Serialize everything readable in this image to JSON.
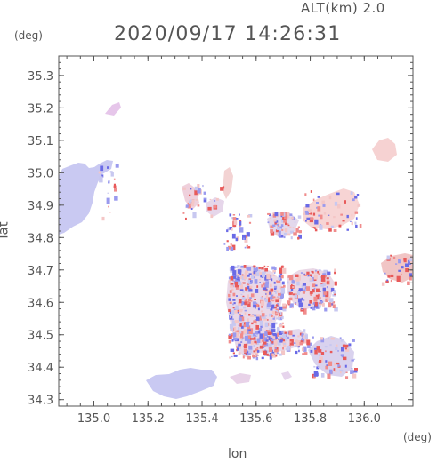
{
  "header": {
    "altitude": "ALT(km)  2.0",
    "datetime": "2020/09/17 14:26:31"
  },
  "axes": {
    "x_unit": "(deg)",
    "y_unit": "(deg)",
    "x_name": "lon",
    "y_name": "lat"
  },
  "chart_data": {
    "type": "heatmap",
    "xlabel": "lon",
    "ylabel": "lat",
    "xlim": [
      134.87,
      136.18
    ],
    "ylim": [
      34.28,
      35.36
    ],
    "x_ticks": [
      135.0,
      135.2,
      135.4,
      135.6,
      135.8,
      136.0
    ],
    "y_ticks": [
      34.3,
      34.4,
      34.5,
      34.6,
      34.7,
      34.8,
      34.9,
      35.0,
      35.1,
      35.2,
      35.3
    ],
    "x_tick_labels": [
      "135.0",
      "135.2",
      "135.4",
      "135.6",
      "135.8",
      "136.0"
    ],
    "y_tick_labels": [
      "34.3",
      "34.4",
      "34.5",
      "34.6",
      "34.7",
      "34.8",
      "34.9",
      "35.0",
      "35.1",
      "35.2",
      "35.3"
    ],
    "grid": false,
    "colors": {
      "negative": "#c8c8f0",
      "negative_strong": "#6a6ae6",
      "positive": "#f4c6c6",
      "positive_strong": "#e85a5a",
      "frame": "#555555"
    }
  }
}
